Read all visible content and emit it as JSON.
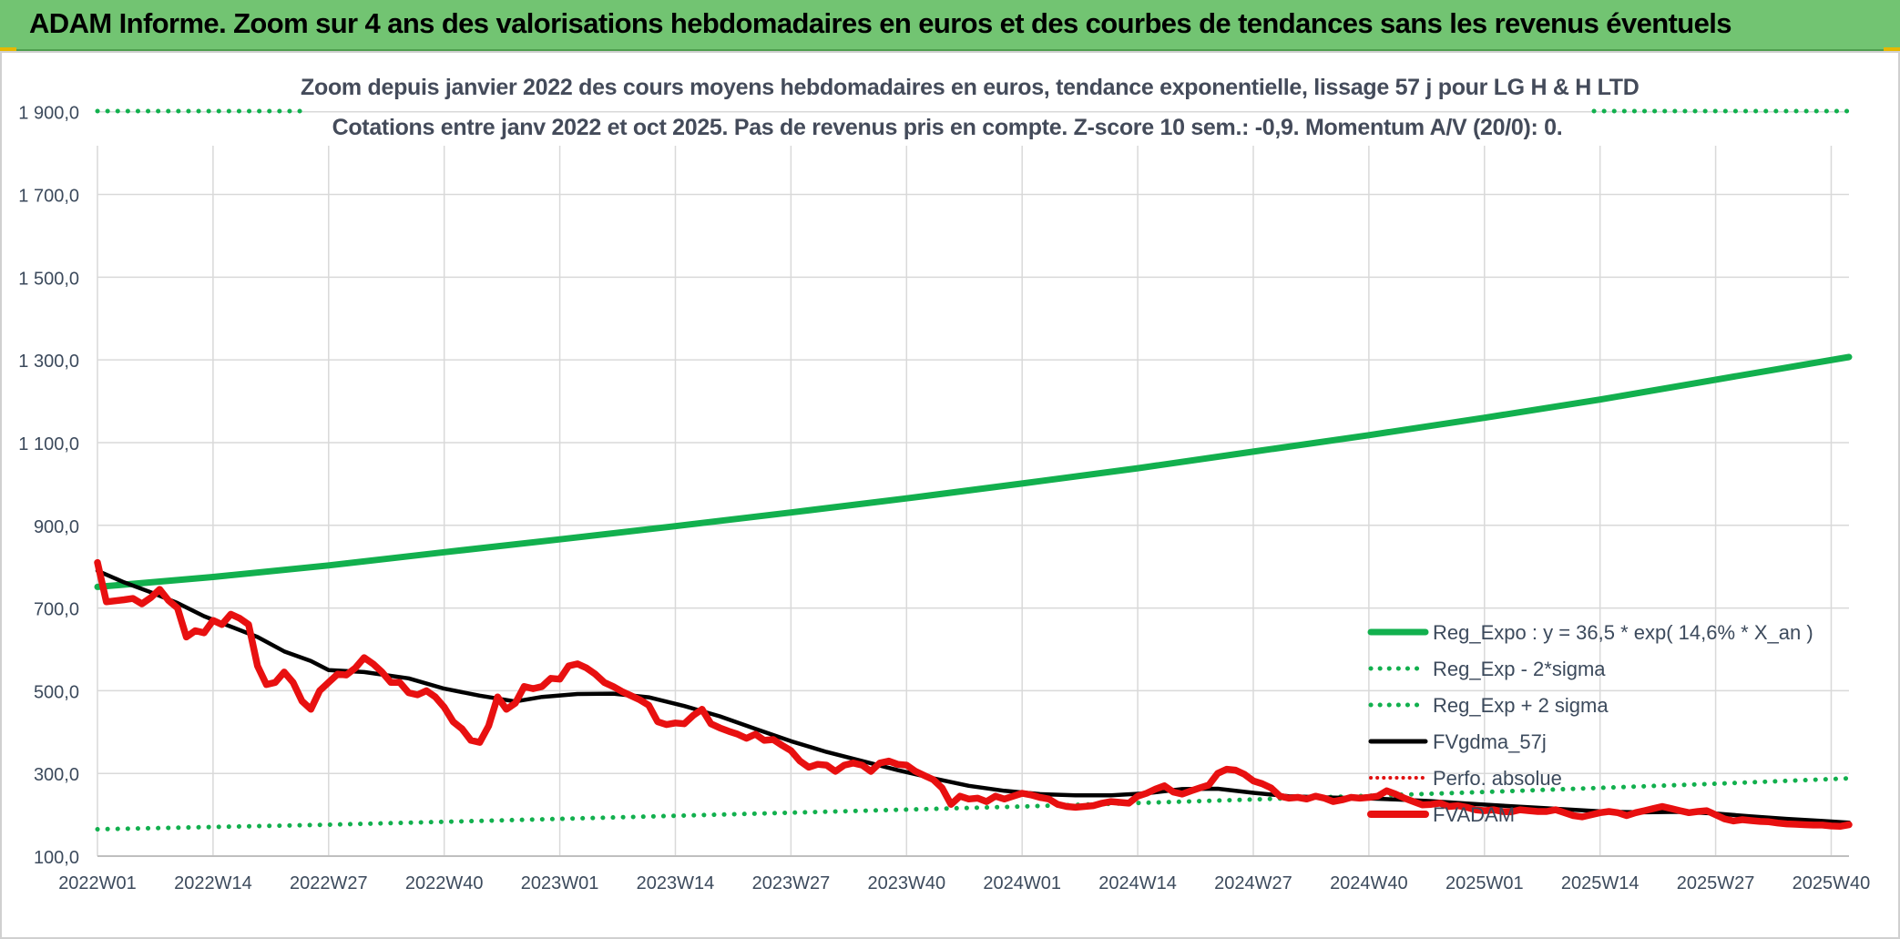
{
  "banner": {
    "title": "ADAM Informe. Zoom sur 4 ans des valorisations hebdomadaires en euros et des courbes de tendances sans les revenus éventuels"
  },
  "chart_data": {
    "type": "line",
    "title_line1": "Zoom depuis janvier 2022 des cours moyens hebdomadaires en euros, tendance exponentielle, lissage 57 j pour LG H & H LTD",
    "title_line2": "Cotations entre janv 2022 et oct 2025. Pas de revenus pris en compte. Z-score 10 sem.: -0,9. Momentum A/V (20/0): 0.",
    "ylim": [
      100,
      1950
    ],
    "y_ticks": [
      100,
      300,
      500,
      700,
      900,
      1100,
      1300,
      1500,
      1700,
      1900
    ],
    "y_tick_labels": [
      "100,0",
      "300,0",
      "500,0",
      "700,0",
      "900,0",
      "1 100,0",
      "1 300,0",
      "1 500,0",
      "1 700,0",
      "1 900,0"
    ],
    "x_range": [
      0,
      197
    ],
    "x_ticks": [
      0,
      13,
      26,
      39,
      52,
      65,
      78,
      91,
      104,
      117,
      130,
      143,
      156,
      169,
      182,
      195
    ],
    "x_tick_labels": [
      "2022W01",
      "2022W14",
      "2022W27",
      "2022W40",
      "2023W01",
      "2023W14",
      "2023W27",
      "2023W40",
      "2024W01",
      "2024W14",
      "2024W27",
      "2024W40",
      "2025W01",
      "2025W14",
      "2025W27",
      "2025W40"
    ],
    "colors": {
      "reg": "#12b04e",
      "band": "#12b04e",
      "gdma": "#000000",
      "perfo": "#e01010",
      "fvadam": "#e81010",
      "grid": "#d9d9d9",
      "axis_text": "#3c4a5c"
    },
    "legend": {
      "placement": "bottom-right",
      "entries": [
        "Reg_Expo : y = 36,5 * exp( 14,6% *  X_an )",
        "Reg_Exp - 2*sigma",
        "Reg_Exp + 2 sigma",
        "FVgdma_57j",
        "Perfo. absolue",
        "FVADAM"
      ]
    },
    "series": [
      {
        "name": "Reg_Expo",
        "style": "solid-thick",
        "points": [
          [
            0,
            751
          ],
          [
            13,
            775
          ],
          [
            26,
            803
          ],
          [
            39,
            835
          ],
          [
            52,
            866
          ],
          [
            65,
            898
          ],
          [
            78,
            931
          ],
          [
            91,
            965
          ],
          [
            104,
            1001
          ],
          [
            117,
            1038
          ],
          [
            130,
            1078
          ],
          [
            143,
            1118
          ],
          [
            156,
            1160
          ],
          [
            169,
            1204
          ],
          [
            182,
            1252
          ],
          [
            197,
            1307
          ]
        ]
      },
      {
        "name": "Reg_Exp - 2*sigma",
        "style": "dotted",
        "points": [
          [
            0,
            165
          ],
          [
            26,
            176
          ],
          [
            52,
            190
          ],
          [
            78,
            205
          ],
          [
            104,
            220
          ],
          [
            130,
            237
          ],
          [
            156,
            255
          ],
          [
            182,
            275
          ],
          [
            197,
            288
          ]
        ]
      },
      {
        "name": "Reg_Exp + 2 sigma",
        "style": "dotted",
        "points": [
          [
            0,
            1995
          ],
          [
            197,
            1995
          ]
        ]
      },
      {
        "name": "FVgdma_57j",
        "style": "solid",
        "points": [
          [
            0,
            790
          ],
          [
            3,
            762
          ],
          [
            6,
            738
          ],
          [
            9,
            712
          ],
          [
            12,
            680
          ],
          [
            15,
            655
          ],
          [
            18,
            630
          ],
          [
            21,
            595
          ],
          [
            24,
            572
          ],
          [
            26,
            550
          ],
          [
            30,
            545
          ],
          [
            35,
            530
          ],
          [
            39,
            505
          ],
          [
            43,
            488
          ],
          [
            47,
            474
          ],
          [
            50,
            485
          ],
          [
            54,
            492
          ],
          [
            58,
            493
          ],
          [
            62,
            484
          ],
          [
            66,
            463
          ],
          [
            70,
            438
          ],
          [
            74,
            408
          ],
          [
            78,
            378
          ],
          [
            82,
            352
          ],
          [
            86,
            330
          ],
          [
            90,
            308
          ],
          [
            94,
            288
          ],
          [
            98,
            270
          ],
          [
            102,
            258
          ],
          [
            106,
            250
          ],
          [
            110,
            247
          ],
          [
            114,
            247
          ],
          [
            118,
            252
          ],
          [
            122,
            262
          ],
          [
            126,
            263
          ],
          [
            130,
            253
          ],
          [
            134,
            245
          ],
          [
            138,
            242
          ],
          [
            142,
            240
          ],
          [
            146,
            237
          ],
          [
            150,
            233
          ],
          [
            154,
            227
          ],
          [
            158,
            222
          ],
          [
            162,
            217
          ],
          [
            166,
            212
          ],
          [
            170,
            207
          ],
          [
            174,
            206
          ],
          [
            178,
            207
          ],
          [
            182,
            203
          ],
          [
            186,
            196
          ],
          [
            190,
            190
          ],
          [
            194,
            185
          ],
          [
            197,
            181
          ]
        ]
      },
      {
        "name": "FVADAM",
        "style": "solid-thick",
        "points": [
          [
            0,
            810
          ],
          [
            1,
            715
          ],
          [
            3,
            720
          ],
          [
            4,
            723
          ],
          [
            5,
            710
          ],
          [
            6,
            725
          ],
          [
            7,
            745
          ],
          [
            8,
            718
          ],
          [
            9,
            700
          ],
          [
            10,
            630
          ],
          [
            11,
            645
          ],
          [
            12,
            640
          ],
          [
            13,
            670
          ],
          [
            14,
            660
          ],
          [
            15,
            685
          ],
          [
            16,
            675
          ],
          [
            17,
            660
          ],
          [
            18,
            560
          ],
          [
            19,
            515
          ],
          [
            20,
            520
          ],
          [
            21,
            545
          ],
          [
            22,
            520
          ],
          [
            23,
            475
          ],
          [
            24,
            455
          ],
          [
            25,
            500
          ],
          [
            26,
            520
          ],
          [
            27,
            540
          ],
          [
            28,
            538
          ],
          [
            29,
            555
          ],
          [
            30,
            580
          ],
          [
            31,
            565
          ],
          [
            32,
            545
          ],
          [
            33,
            520
          ],
          [
            34,
            520
          ],
          [
            35,
            495
          ],
          [
            36,
            490
          ],
          [
            37,
            500
          ],
          [
            38,
            485
          ],
          [
            39,
            460
          ],
          [
            40,
            425
          ],
          [
            41,
            408
          ],
          [
            42,
            380
          ],
          [
            43,
            375
          ],
          [
            44,
            415
          ],
          [
            45,
            485
          ],
          [
            46,
            455
          ],
          [
            47,
            470
          ],
          [
            48,
            510
          ],
          [
            49,
            505
          ],
          [
            50,
            510
          ],
          [
            51,
            530
          ],
          [
            52,
            528
          ],
          [
            53,
            560
          ],
          [
            54,
            565
          ],
          [
            55,
            555
          ],
          [
            56,
            540
          ],
          [
            57,
            520
          ],
          [
            58,
            510
          ],
          [
            59,
            498
          ],
          [
            60,
            488
          ],
          [
            61,
            478
          ],
          [
            62,
            465
          ],
          [
            63,
            425
          ],
          [
            64,
            418
          ],
          [
            65,
            422
          ],
          [
            66,
            420
          ],
          [
            67,
            440
          ],
          [
            68,
            455
          ],
          [
            69,
            420
          ],
          [
            70,
            410
          ],
          [
            71,
            402
          ],
          [
            72,
            395
          ],
          [
            73,
            385
          ],
          [
            74,
            395
          ],
          [
            75,
            380
          ],
          [
            76,
            382
          ],
          [
            77,
            368
          ],
          [
            78,
            355
          ],
          [
            79,
            330
          ],
          [
            80,
            315
          ],
          [
            81,
            322
          ],
          [
            82,
            320
          ],
          [
            83,
            305
          ],
          [
            84,
            320
          ],
          [
            85,
            325
          ],
          [
            86,
            320
          ],
          [
            87,
            305
          ],
          [
            88,
            325
          ],
          [
            89,
            330
          ],
          [
            90,
            322
          ],
          [
            91,
            320
          ],
          [
            92,
            305
          ],
          [
            93,
            295
          ],
          [
            94,
            285
          ],
          [
            95,
            265
          ],
          [
            96,
            225
          ],
          [
            97,
            245
          ],
          [
            98,
            238
          ],
          [
            99,
            240
          ],
          [
            100,
            232
          ],
          [
            101,
            245
          ],
          [
            102,
            238
          ],
          [
            103,
            245
          ],
          [
            104,
            252
          ],
          [
            105,
            248
          ],
          [
            106,
            242
          ],
          [
            107,
            238
          ],
          [
            108,
            225
          ],
          [
            109,
            220
          ],
          [
            110,
            218
          ],
          [
            111,
            220
          ],
          [
            112,
            222
          ],
          [
            113,
            228
          ],
          [
            114,
            232
          ],
          [
            115,
            230
          ],
          [
            116,
            228
          ],
          [
            117,
            245
          ],
          [
            118,
            252
          ],
          [
            119,
            262
          ],
          [
            120,
            270
          ],
          [
            121,
            255
          ],
          [
            122,
            250
          ],
          [
            123,
            258
          ],
          [
            124,
            265
          ],
          [
            125,
            272
          ],
          [
            126,
            300
          ],
          [
            127,
            310
          ],
          [
            128,
            308
          ],
          [
            129,
            298
          ],
          [
            130,
            282
          ],
          [
            131,
            275
          ],
          [
            132,
            265
          ],
          [
            133,
            245
          ],
          [
            134,
            240
          ],
          [
            135,
            242
          ],
          [
            136,
            238
          ],
          [
            137,
            245
          ],
          [
            138,
            240
          ],
          [
            139,
            232
          ],
          [
            140,
            236
          ],
          [
            141,
            242
          ],
          [
            142,
            240
          ],
          [
            143,
            242
          ],
          [
            144,
            245
          ],
          [
            145,
            258
          ],
          [
            146,
            250
          ],
          [
            147,
            240
          ],
          [
            148,
            232
          ],
          [
            149,
            224
          ],
          [
            150,
            225
          ],
          [
            151,
            228
          ],
          [
            152,
            220
          ],
          [
            153,
            222
          ],
          [
            154,
            218
          ],
          [
            155,
            212
          ],
          [
            156,
            210
          ],
          [
            157,
            212
          ],
          [
            158,
            208
          ],
          [
            159,
            207
          ],
          [
            160,
            212
          ],
          [
            161,
            210
          ],
          [
            162,
            208
          ],
          [
            163,
            208
          ],
          [
            164,
            212
          ],
          [
            165,
            205
          ],
          [
            166,
            198
          ],
          [
            167,
            195
          ],
          [
            168,
            200
          ],
          [
            169,
            205
          ],
          [
            170,
            208
          ],
          [
            171,
            205
          ],
          [
            172,
            198
          ],
          [
            173,
            205
          ],
          [
            174,
            210
          ],
          [
            175,
            215
          ],
          [
            176,
            220
          ],
          [
            177,
            215
          ],
          [
            178,
            210
          ],
          [
            179,
            205
          ],
          [
            180,
            208
          ],
          [
            181,
            210
          ],
          [
            182,
            200
          ],
          [
            183,
            190
          ],
          [
            184,
            185
          ],
          [
            185,
            188
          ],
          [
            186,
            186
          ],
          [
            187,
            184
          ],
          [
            188,
            183
          ],
          [
            189,
            180
          ],
          [
            190,
            178
          ],
          [
            191,
            177
          ],
          [
            192,
            176
          ],
          [
            193,
            175
          ],
          [
            194,
            175
          ],
          [
            195,
            173
          ],
          [
            196,
            172
          ],
          [
            197,
            176
          ]
        ]
      }
    ]
  }
}
